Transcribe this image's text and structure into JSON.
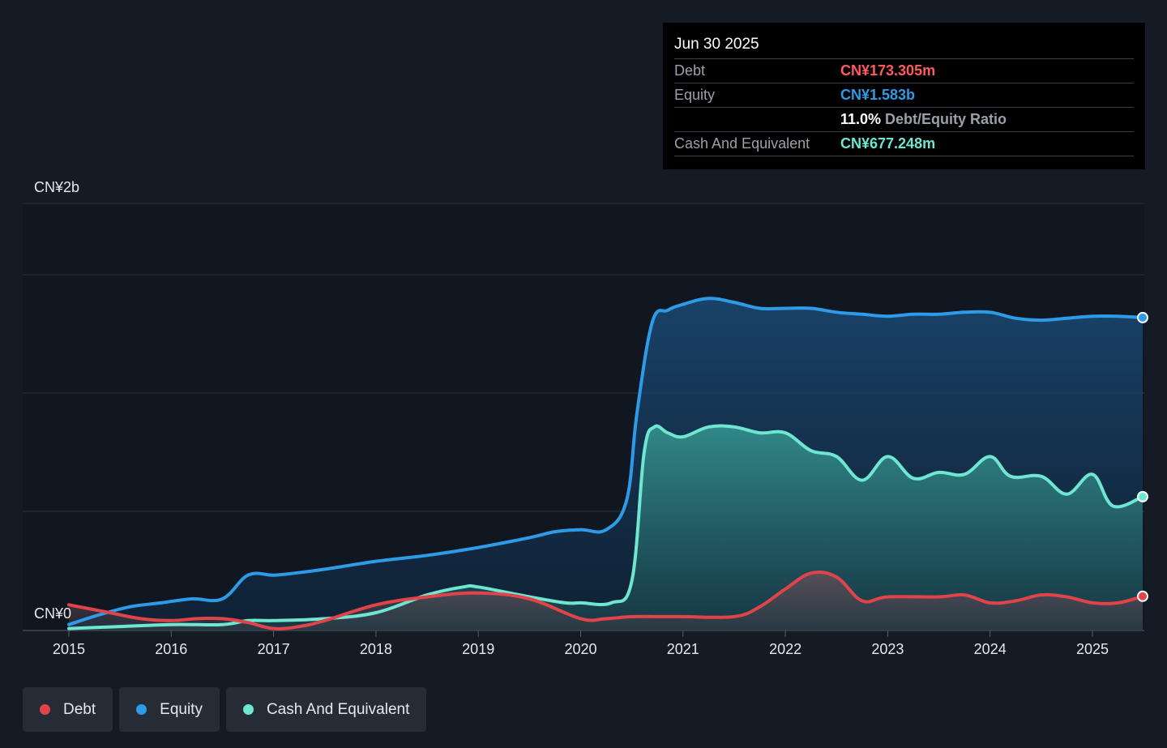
{
  "tooltip": {
    "date": "Jun 30 2025",
    "debt_label": "Debt",
    "debt_value": "CN¥173.305m",
    "equity_label": "Equity",
    "equity_value": "CN¥1.583b",
    "ratio_value": "11.0%",
    "ratio_label": "Debt/Equity Ratio",
    "cash_label": "Cash And Equivalent",
    "cash_value": "CN¥677.248m"
  },
  "legend": [
    {
      "label": "Debt",
      "color": "#e0434a"
    },
    {
      "label": "Equity",
      "color": "#2d9be8"
    },
    {
      "label": "Cash And Equivalent",
      "color": "#6ee6d2"
    }
  ],
  "chart_data": {
    "type": "area",
    "y_top_label": "CN¥2b",
    "y_bottom_label": "CN¥0",
    "ylim": [
      0,
      1.8
    ],
    "y_unit": "CN¥ billions",
    "x_ticks": [
      "2015",
      "2016",
      "2017",
      "2018",
      "2019",
      "2020",
      "2021",
      "2022",
      "2023",
      "2024",
      "2025"
    ],
    "xlim": [
      2014.55,
      2025.5
    ],
    "series": [
      {
        "name": "Equity",
        "color": "#2d9be8",
        "points": [
          [
            2015.0,
            0.03
          ],
          [
            2015.3,
            0.08
          ],
          [
            2015.6,
            0.12
          ],
          [
            2015.9,
            0.14
          ],
          [
            2016.2,
            0.16
          ],
          [
            2016.5,
            0.16
          ],
          [
            2016.75,
            0.28
          ],
          [
            2017.0,
            0.28
          ],
          [
            2017.2,
            0.29
          ],
          [
            2017.5,
            0.31
          ],
          [
            2018.0,
            0.35
          ],
          [
            2018.5,
            0.38
          ],
          [
            2019.0,
            0.42
          ],
          [
            2019.5,
            0.47
          ],
          [
            2019.75,
            0.5
          ],
          [
            2020.0,
            0.51
          ],
          [
            2020.25,
            0.51
          ],
          [
            2020.45,
            0.66
          ],
          [
            2020.55,
            1.1
          ],
          [
            2020.7,
            1.56
          ],
          [
            2020.85,
            1.62
          ],
          [
            2021.0,
            1.65
          ],
          [
            2021.25,
            1.68
          ],
          [
            2021.5,
            1.66
          ],
          [
            2021.75,
            1.63
          ],
          [
            2022.0,
            1.63
          ],
          [
            2022.25,
            1.63
          ],
          [
            2022.5,
            1.61
          ],
          [
            2022.75,
            1.6
          ],
          [
            2023.0,
            1.59
          ],
          [
            2023.25,
            1.6
          ],
          [
            2023.5,
            1.6
          ],
          [
            2023.75,
            1.61
          ],
          [
            2024.0,
            1.61
          ],
          [
            2024.25,
            1.58
          ],
          [
            2024.5,
            1.57
          ],
          [
            2024.75,
            1.58
          ],
          [
            2025.0,
            1.59
          ],
          [
            2025.25,
            1.59
          ],
          [
            2025.5,
            1.583
          ]
        ]
      },
      {
        "name": "Cash And Equivalent",
        "color": "#6ee6d2",
        "points": [
          [
            2015.0,
            0.01
          ],
          [
            2015.5,
            0.02
          ],
          [
            2016.0,
            0.03
          ],
          [
            2016.5,
            0.03
          ],
          [
            2016.75,
            0.05
          ],
          [
            2017.0,
            0.05
          ],
          [
            2017.5,
            0.06
          ],
          [
            2018.0,
            0.09
          ],
          [
            2018.5,
            0.18
          ],
          [
            2018.85,
            0.22
          ],
          [
            2019.0,
            0.22
          ],
          [
            2019.5,
            0.17
          ],
          [
            2019.85,
            0.14
          ],
          [
            2020.0,
            0.14
          ],
          [
            2020.3,
            0.14
          ],
          [
            2020.5,
            0.25
          ],
          [
            2020.62,
            0.9
          ],
          [
            2020.72,
            1.03
          ],
          [
            2020.85,
            1.0
          ],
          [
            2021.0,
            0.98
          ],
          [
            2021.25,
            1.03
          ],
          [
            2021.5,
            1.03
          ],
          [
            2021.75,
            1.0
          ],
          [
            2022.0,
            1.0
          ],
          [
            2022.25,
            0.91
          ],
          [
            2022.5,
            0.88
          ],
          [
            2022.75,
            0.76
          ],
          [
            2023.0,
            0.88
          ],
          [
            2023.25,
            0.77
          ],
          [
            2023.5,
            0.8
          ],
          [
            2023.75,
            0.79
          ],
          [
            2024.0,
            0.88
          ],
          [
            2024.2,
            0.78
          ],
          [
            2024.5,
            0.78
          ],
          [
            2024.75,
            0.69
          ],
          [
            2025.0,
            0.79
          ],
          [
            2025.2,
            0.63
          ],
          [
            2025.5,
            0.677
          ]
        ]
      },
      {
        "name": "Debt",
        "color": "#e0434a",
        "points": [
          [
            2015.0,
            0.13
          ],
          [
            2015.4,
            0.09
          ],
          [
            2015.7,
            0.06
          ],
          [
            2016.0,
            0.05
          ],
          [
            2016.25,
            0.06
          ],
          [
            2016.5,
            0.06
          ],
          [
            2016.75,
            0.04
          ],
          [
            2017.0,
            0.01
          ],
          [
            2017.25,
            0.02
          ],
          [
            2017.5,
            0.05
          ],
          [
            2018.0,
            0.13
          ],
          [
            2018.5,
            0.17
          ],
          [
            2019.0,
            0.19
          ],
          [
            2019.5,
            0.16
          ],
          [
            2020.0,
            0.06
          ],
          [
            2020.25,
            0.06
          ],
          [
            2020.5,
            0.07
          ],
          [
            2020.75,
            0.07
          ],
          [
            2021.0,
            0.07
          ],
          [
            2021.5,
            0.07
          ],
          [
            2021.75,
            0.12
          ],
          [
            2022.0,
            0.21
          ],
          [
            2022.25,
            0.29
          ],
          [
            2022.5,
            0.27
          ],
          [
            2022.75,
            0.15
          ],
          [
            2023.0,
            0.17
          ],
          [
            2023.5,
            0.17
          ],
          [
            2023.75,
            0.18
          ],
          [
            2024.0,
            0.14
          ],
          [
            2024.25,
            0.15
          ],
          [
            2024.5,
            0.18
          ],
          [
            2024.75,
            0.17
          ],
          [
            2025.0,
            0.14
          ],
          [
            2025.25,
            0.14
          ],
          [
            2025.5,
            0.173
          ]
        ]
      }
    ]
  }
}
